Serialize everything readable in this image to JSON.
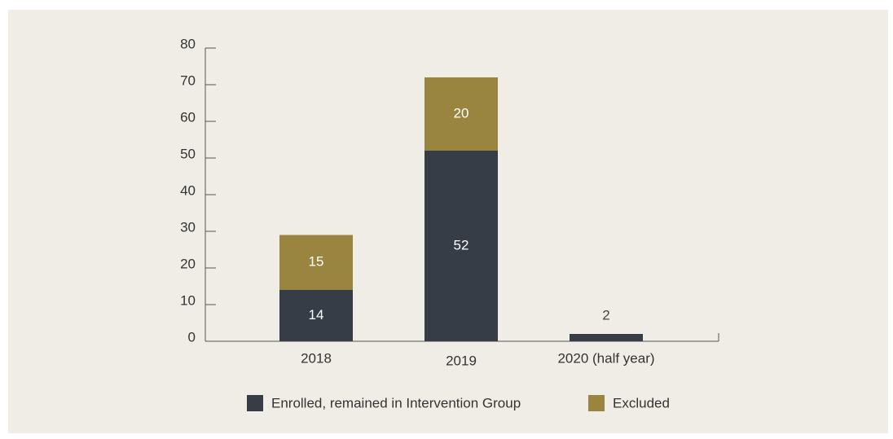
{
  "chart_data": {
    "type": "stacked_bar",
    "categories": [
      "2018",
      "2019",
      "2020 (half year)"
    ],
    "series": [
      {
        "name": "Enrolled, remained in Intervention Group",
        "color": "#363d47",
        "values": [
          14,
          52,
          2
        ]
      },
      {
        "name": "Excluded",
        "color": "#9a8540",
        "values": [
          15,
          20,
          null
        ]
      }
    ],
    "ylim": [
      0,
      80
    ],
    "yticks": [
      0,
      10,
      20,
      30,
      40,
      50,
      60,
      70,
      80
    ],
    "grid": false,
    "legend": "bottom"
  }
}
